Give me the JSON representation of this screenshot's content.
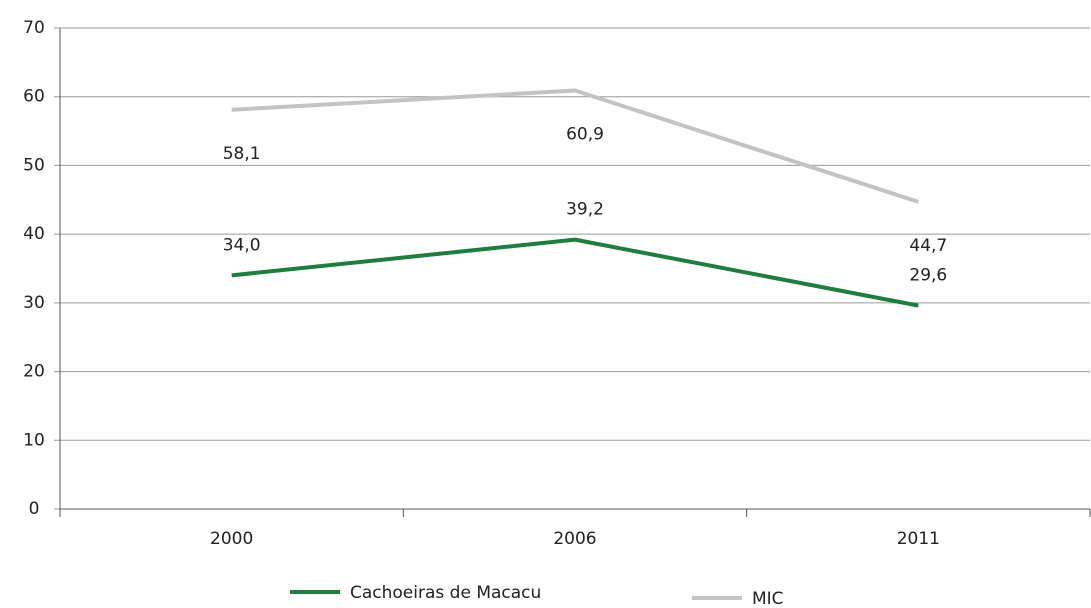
{
  "chart_data": {
    "type": "line",
    "categories": [
      "2000",
      "2006",
      "2011"
    ],
    "series": [
      {
        "name": "Cachoeiras de Macacu",
        "color": "#1e7e3e",
        "values": [
          34.0,
          39.2,
          29.6
        ],
        "value_labels": [
          "34,0",
          "39,2",
          "29,6"
        ]
      },
      {
        "name": "MIC",
        "color": "#c3c3c3",
        "values": [
          58.1,
          60.9,
          44.7
        ],
        "value_labels": [
          "58,1",
          "60,9",
          "44,7"
        ]
      }
    ],
    "ylim": [
      0,
      70
    ],
    "yticks": [
      0,
      10,
      20,
      30,
      40,
      50,
      60,
      70
    ],
    "grid": true
  }
}
